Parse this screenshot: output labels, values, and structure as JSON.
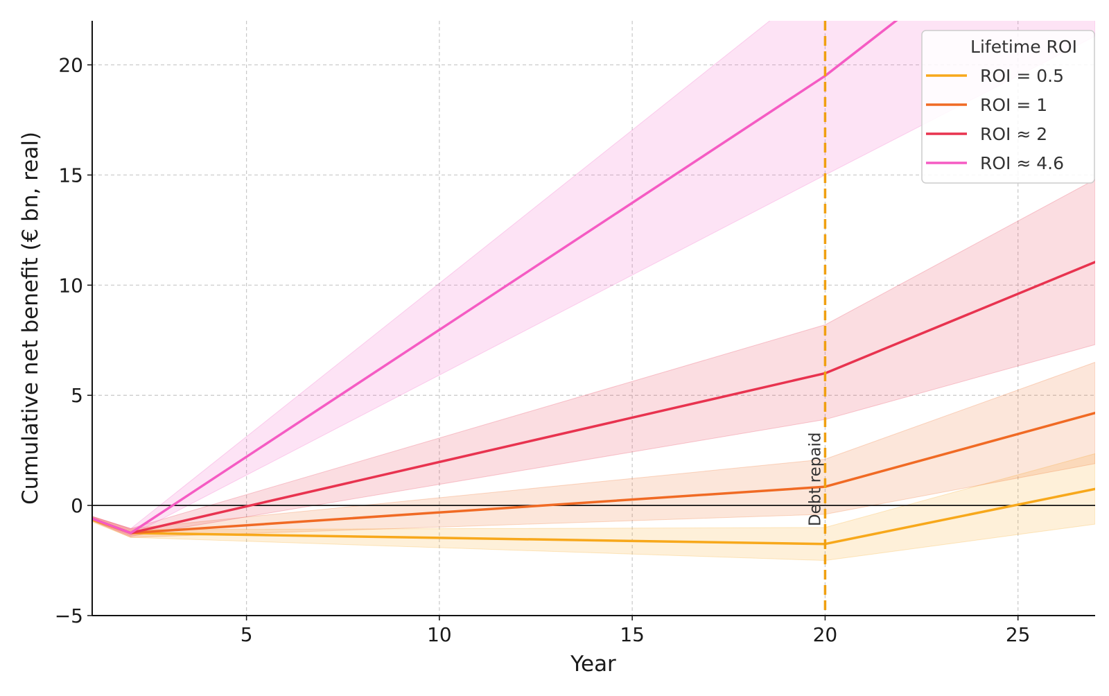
{
  "chart_data": {
    "type": "line",
    "title": "",
    "xlabel": "Year",
    "ylabel": "Cumulative net benefit (€ bn, real)",
    "xlim": [
      1,
      27
    ],
    "ylim": [
      -5,
      22
    ],
    "x_ticks": [
      5,
      10,
      15,
      20,
      25
    ],
    "y_ticks": [
      -5,
      0,
      5,
      10,
      15,
      20
    ],
    "x_tick_labels": [
      "5",
      "10",
      "15",
      "20",
      "25"
    ],
    "y_tick_labels": [
      "−5",
      "0",
      "5",
      "10",
      "15",
      "20"
    ],
    "grid": true,
    "zero_line": true,
    "legend": {
      "title": "Lifetime ROI",
      "placement": "top-right"
    },
    "series": [
      {
        "name": "ROI = 0.5",
        "color": "#F7A81B",
        "x": [
          1,
          2,
          20,
          27
        ],
        "values": [
          -0.65,
          -1.25,
          -1.75,
          0.75
        ],
        "band_x": [
          1,
          2,
          20,
          27
        ],
        "band_low": [
          -0.75,
          -1.45,
          -2.5,
          -0.85
        ],
        "band_high": [
          -0.5,
          -1.1,
          -1.0,
          2.35
        ]
      },
      {
        "name": "ROI = 1",
        "color": "#F06A24",
        "x": [
          1,
          2,
          20,
          27
        ],
        "values": [
          -0.6,
          -1.25,
          0.85,
          4.2
        ],
        "band_x": [
          1,
          2,
          20,
          27
        ],
        "band_low": [
          -0.7,
          -1.45,
          -0.4,
          1.9
        ],
        "band_high": [
          -0.5,
          -1.05,
          2.1,
          6.5
        ]
      },
      {
        "name": "ROI ≈ 2",
        "color": "#E8334F",
        "x": [
          1,
          2,
          20,
          27
        ],
        "values": [
          -0.6,
          -1.25,
          6.0,
          11.05
        ],
        "band_x": [
          1,
          2,
          20,
          27
        ],
        "band_low": [
          -0.7,
          -1.4,
          3.9,
          7.3
        ],
        "band_high": [
          -0.5,
          -1.05,
          8.2,
          14.8
        ]
      },
      {
        "name": "ROI ≈ 4.6",
        "color": "#F55BC3",
        "x": [
          1,
          2,
          20,
          22.5
        ],
        "values": [
          -0.6,
          -1.25,
          19.5,
          22.9
        ],
        "band_x": [
          1,
          2,
          20,
          27
        ],
        "band_low": [
          -0.7,
          -1.35,
          15.0,
          21.3
        ],
        "band_high": [
          -0.5,
          -1.05,
          24.0,
          32.0
        ]
      }
    ],
    "annotations": [
      {
        "type": "vline",
        "x": 20,
        "color": "#F0A011",
        "style": "dashed",
        "label": "Debt repaid"
      }
    ]
  }
}
